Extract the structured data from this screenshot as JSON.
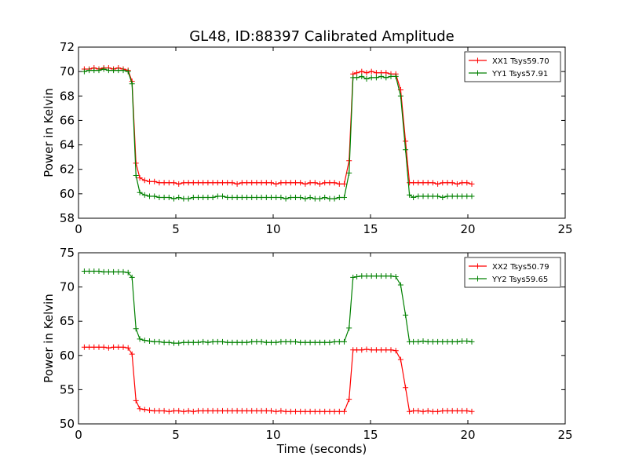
{
  "chart_data": [
    {
      "type": "line",
      "title": "GL48, ID:88397 Calibrated Amplitude",
      "xlabel": "",
      "ylabel": "Power in Kelvin",
      "xlim": [
        0,
        25
      ],
      "ylim": [
        58,
        72
      ],
      "xticks": [
        0,
        5,
        10,
        15,
        20,
        25
      ],
      "yticks": [
        58,
        60,
        62,
        64,
        66,
        68,
        70,
        72
      ],
      "grid": false,
      "legend": "top-right",
      "series": [
        {
          "name": "XX1 Tsys59.70",
          "color": "#ff0000",
          "x": [
            0.3,
            0.55,
            0.8,
            1.05,
            1.3,
            1.55,
            1.8,
            2.05,
            2.3,
            2.55,
            2.75,
            2.95,
            3.15,
            3.4,
            3.65,
            3.9,
            4.15,
            4.4,
            4.65,
            4.9,
            5.15,
            5.4,
            5.65,
            5.9,
            6.15,
            6.4,
            6.65,
            6.9,
            7.15,
            7.4,
            7.65,
            7.9,
            8.15,
            8.4,
            8.65,
            8.9,
            9.15,
            9.4,
            9.65,
            9.9,
            10.15,
            10.4,
            10.65,
            10.9,
            11.15,
            11.4,
            11.65,
            11.9,
            12.15,
            12.4,
            12.65,
            12.9,
            13.15,
            13.4,
            13.65,
            13.9,
            14.1,
            14.3,
            14.55,
            14.8,
            15.05,
            15.3,
            15.55,
            15.8,
            16.05,
            16.3,
            16.55,
            16.8,
            17.0,
            17.2,
            17.45,
            17.7,
            17.95,
            18.2,
            18.45,
            18.7,
            18.95,
            19.2,
            19.45,
            19.7,
            19.95,
            20.2
          ],
          "y": [
            70.2,
            70.2,
            70.3,
            70.2,
            70.3,
            70.3,
            70.2,
            70.3,
            70.2,
            70.1,
            69.2,
            62.5,
            61.3,
            61.1,
            61.0,
            61.0,
            60.9,
            60.9,
            60.9,
            60.9,
            60.8,
            60.9,
            60.9,
            60.9,
            60.9,
            60.9,
            60.9,
            60.9,
            60.9,
            60.9,
            60.9,
            60.9,
            60.8,
            60.9,
            60.9,
            60.9,
            60.9,
            60.9,
            60.9,
            60.9,
            60.8,
            60.9,
            60.9,
            60.9,
            60.9,
            60.9,
            60.8,
            60.9,
            60.9,
            60.8,
            60.9,
            60.9,
            60.9,
            60.8,
            60.8,
            62.7,
            69.8,
            69.9,
            70.0,
            69.9,
            70.0,
            69.9,
            69.9,
            69.9,
            69.8,
            69.8,
            68.5,
            64.3,
            60.9,
            60.9,
            60.9,
            60.9,
            60.9,
            60.9,
            60.8,
            60.9,
            60.9,
            60.9,
            60.8,
            60.9,
            60.9,
            60.8
          ]
        },
        {
          "name": "YY1 Tsys57.91",
          "color": "#008000",
          "x": [
            0.3,
            0.55,
            0.8,
            1.05,
            1.3,
            1.55,
            1.8,
            2.05,
            2.3,
            2.55,
            2.75,
            2.95,
            3.15,
            3.4,
            3.65,
            3.9,
            4.15,
            4.4,
            4.65,
            4.9,
            5.15,
            5.4,
            5.65,
            5.9,
            6.15,
            6.4,
            6.65,
            6.9,
            7.15,
            7.4,
            7.65,
            7.9,
            8.15,
            8.4,
            8.65,
            8.9,
            9.15,
            9.4,
            9.65,
            9.9,
            10.15,
            10.4,
            10.65,
            10.9,
            11.15,
            11.4,
            11.65,
            11.9,
            12.15,
            12.4,
            12.65,
            12.9,
            13.15,
            13.4,
            13.65,
            13.9,
            14.1,
            14.3,
            14.55,
            14.8,
            15.05,
            15.3,
            15.55,
            15.8,
            16.05,
            16.3,
            16.55,
            16.8,
            17.0,
            17.2,
            17.45,
            17.7,
            17.95,
            18.2,
            18.45,
            18.7,
            18.95,
            19.2,
            19.45,
            19.7,
            19.95,
            20.2
          ],
          "y": [
            70.0,
            70.1,
            70.1,
            70.1,
            70.2,
            70.1,
            70.1,
            70.1,
            70.1,
            70.0,
            69.0,
            61.5,
            60.1,
            59.9,
            59.8,
            59.8,
            59.7,
            59.7,
            59.7,
            59.6,
            59.7,
            59.6,
            59.6,
            59.7,
            59.7,
            59.7,
            59.7,
            59.7,
            59.8,
            59.8,
            59.7,
            59.7,
            59.7,
            59.7,
            59.7,
            59.7,
            59.7,
            59.7,
            59.7,
            59.7,
            59.7,
            59.7,
            59.6,
            59.7,
            59.7,
            59.7,
            59.6,
            59.7,
            59.6,
            59.6,
            59.7,
            59.6,
            59.6,
            59.7,
            59.7,
            61.7,
            69.5,
            69.5,
            69.6,
            69.4,
            69.5,
            69.5,
            69.6,
            69.5,
            69.6,
            69.6,
            68.0,
            63.6,
            59.9,
            59.7,
            59.8,
            59.8,
            59.8,
            59.8,
            59.8,
            59.7,
            59.8,
            59.8,
            59.8,
            59.8,
            59.8,
            59.8
          ]
        }
      ]
    },
    {
      "type": "line",
      "title": "",
      "xlabel": "Time (seconds)",
      "ylabel": "Power in Kelvin",
      "xlim": [
        0,
        25
      ],
      "ylim": [
        50,
        75
      ],
      "xticks": [
        0,
        5,
        10,
        15,
        20,
        25
      ],
      "yticks": [
        50,
        55,
        60,
        65,
        70,
        75
      ],
      "grid": false,
      "legend": "top-right",
      "series": [
        {
          "name": "XX2 Tsys50.79",
          "color": "#ff0000",
          "x": [
            0.3,
            0.55,
            0.8,
            1.05,
            1.3,
            1.55,
            1.8,
            2.05,
            2.3,
            2.55,
            2.75,
            2.95,
            3.15,
            3.4,
            3.65,
            3.9,
            4.15,
            4.4,
            4.65,
            4.9,
            5.15,
            5.4,
            5.65,
            5.9,
            6.15,
            6.4,
            6.65,
            6.9,
            7.15,
            7.4,
            7.65,
            7.9,
            8.15,
            8.4,
            8.65,
            8.9,
            9.15,
            9.4,
            9.65,
            9.9,
            10.15,
            10.4,
            10.65,
            10.9,
            11.15,
            11.4,
            11.65,
            11.9,
            12.15,
            12.4,
            12.65,
            12.9,
            13.15,
            13.4,
            13.65,
            13.9,
            14.1,
            14.3,
            14.55,
            14.8,
            15.05,
            15.3,
            15.55,
            15.8,
            16.05,
            16.3,
            16.55,
            16.8,
            17.0,
            17.2,
            17.45,
            17.7,
            17.95,
            18.2,
            18.45,
            18.7,
            18.95,
            19.2,
            19.45,
            19.7,
            19.95,
            20.2
          ],
          "y": [
            61.2,
            61.2,
            61.2,
            61.2,
            61.2,
            61.1,
            61.2,
            61.2,
            61.2,
            61.1,
            60.2,
            53.4,
            52.2,
            52.1,
            52.0,
            51.9,
            51.9,
            51.9,
            51.8,
            51.9,
            51.9,
            51.8,
            51.9,
            51.8,
            51.9,
            51.9,
            51.9,
            51.9,
            51.9,
            51.9,
            51.9,
            51.9,
            51.9,
            51.9,
            51.9,
            51.9,
            51.9,
            51.9,
            51.9,
            51.9,
            51.8,
            51.9,
            51.8,
            51.8,
            51.8,
            51.8,
            51.8,
            51.8,
            51.8,
            51.8,
            51.8,
            51.8,
            51.8,
            51.8,
            51.8,
            53.6,
            60.8,
            60.8,
            60.8,
            60.9,
            60.8,
            60.8,
            60.8,
            60.8,
            60.8,
            60.7,
            59.4,
            55.3,
            51.8,
            51.9,
            51.9,
            51.8,
            51.9,
            51.8,
            51.8,
            51.9,
            51.9,
            51.9,
            51.9,
            51.9,
            51.9,
            51.8
          ]
        },
        {
          "name": "YY2 Tsys59.65",
          "color": "#008000",
          "x": [
            0.3,
            0.55,
            0.8,
            1.05,
            1.3,
            1.55,
            1.8,
            2.05,
            2.3,
            2.55,
            2.75,
            2.95,
            3.15,
            3.4,
            3.65,
            3.9,
            4.15,
            4.4,
            4.65,
            4.9,
            5.15,
            5.4,
            5.65,
            5.9,
            6.15,
            6.4,
            6.65,
            6.9,
            7.15,
            7.4,
            7.65,
            7.9,
            8.15,
            8.4,
            8.65,
            8.9,
            9.15,
            9.4,
            9.65,
            9.9,
            10.15,
            10.4,
            10.65,
            10.9,
            11.15,
            11.4,
            11.65,
            11.9,
            12.15,
            12.4,
            12.65,
            12.9,
            13.15,
            13.4,
            13.65,
            13.9,
            14.1,
            14.3,
            14.55,
            14.8,
            15.05,
            15.3,
            15.55,
            15.8,
            16.05,
            16.3,
            16.55,
            16.8,
            17.0,
            17.2,
            17.45,
            17.7,
            17.95,
            18.2,
            18.45,
            18.7,
            18.95,
            19.2,
            19.45,
            19.7,
            19.95,
            20.2
          ],
          "y": [
            72.3,
            72.3,
            72.3,
            72.3,
            72.2,
            72.2,
            72.2,
            72.2,
            72.2,
            72.1,
            71.4,
            63.9,
            62.4,
            62.2,
            62.1,
            62.0,
            62.0,
            61.9,
            61.9,
            61.8,
            61.8,
            61.9,
            61.9,
            61.9,
            61.9,
            62.0,
            61.9,
            62.0,
            62.0,
            62.0,
            61.9,
            61.9,
            61.9,
            61.9,
            61.9,
            62.0,
            62.0,
            62.0,
            61.9,
            61.9,
            61.9,
            62.0,
            62.0,
            62.0,
            62.0,
            61.9,
            61.9,
            61.9,
            61.9,
            61.9,
            61.9,
            61.9,
            62.0,
            62.0,
            62.0,
            64.0,
            71.4,
            71.5,
            71.6,
            71.6,
            71.6,
            71.6,
            71.6,
            71.6,
            71.6,
            71.5,
            70.3,
            65.9,
            62.0,
            62.0,
            62.0,
            62.1,
            62.0,
            62.0,
            62.0,
            62.0,
            62.0,
            62.0,
            62.0,
            62.1,
            62.1,
            62.0
          ]
        }
      ]
    }
  ]
}
